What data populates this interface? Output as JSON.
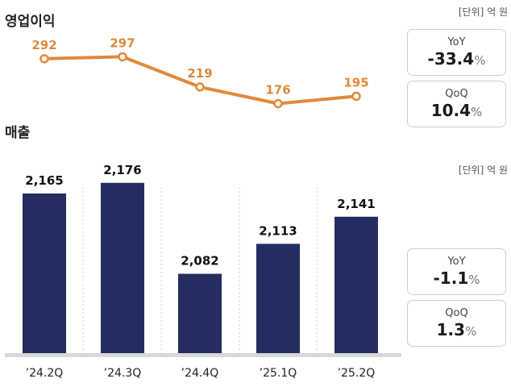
{
  "op_profit": {
    "title": "영업이익",
    "unit": "[단위] 억 원",
    "yoy": {
      "label": "YoY",
      "value": "-33.4",
      "unit": "%"
    },
    "qoq": {
      "label": "QoQ",
      "value": "10.4",
      "unit": "%"
    }
  },
  "revenue": {
    "title": "매출",
    "unit": "[단위] 억 원",
    "yoy": {
      "label": "YoY",
      "value": "-1.1",
      "unit": "%"
    },
    "qoq": {
      "label": "QoQ",
      "value": "1.3",
      "unit": "%"
    }
  },
  "colors": {
    "bar": "#252d60",
    "line": "#e08a3c",
    "baseline": "#d8d8d8",
    "grid": "#d0d0d0"
  },
  "chart_data": [
    {
      "type": "line",
      "title": "영업이익",
      "categories": [
        "’24.2Q",
        "’24.3Q",
        "’24.4Q",
        "’25.1Q",
        "’25.2Q"
      ],
      "values": [
        292,
        297,
        219,
        176,
        195
      ],
      "labels": [
        "292",
        "297",
        "219",
        "176",
        "195"
      ]
    },
    {
      "type": "bar",
      "title": "매출",
      "categories": [
        "’24.2Q",
        "’24.3Q",
        "’24.4Q",
        "’25.1Q",
        "’25.2Q"
      ],
      "values": [
        2165,
        2176,
        2082,
        2113,
        2141
      ],
      "labels": [
        "2,165",
        "2,176",
        "2,082",
        "2,113",
        "2,141"
      ]
    }
  ]
}
